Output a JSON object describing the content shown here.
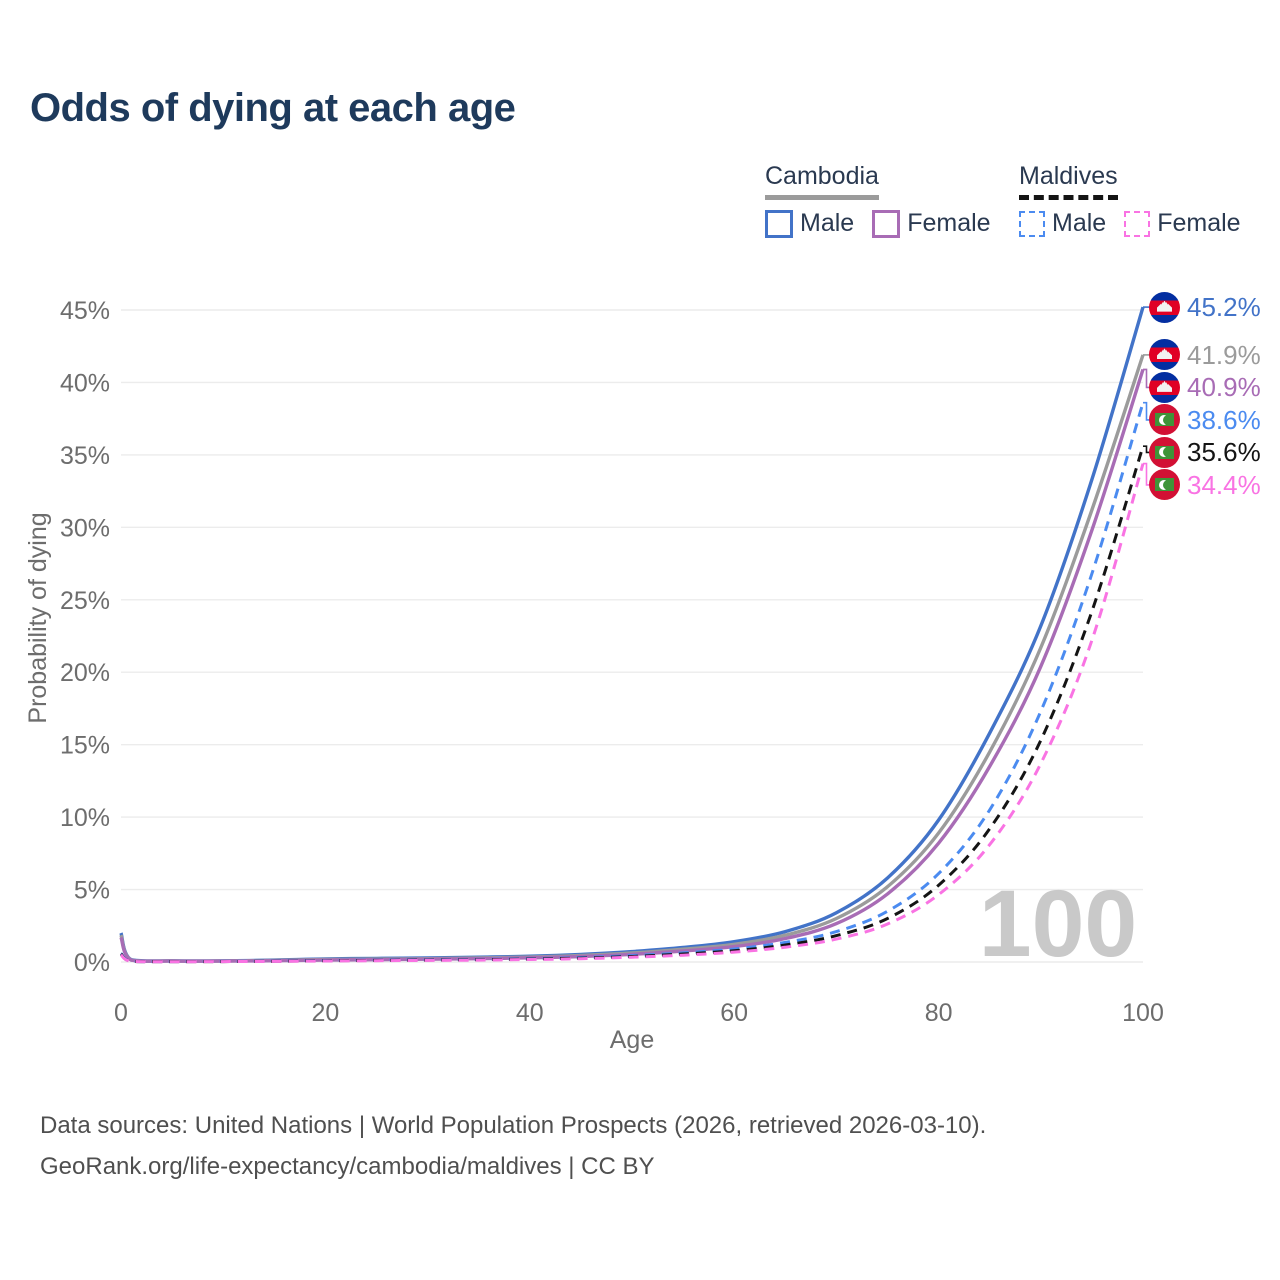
{
  "title": "Odds of dying at each age",
  "legend": {
    "groups": [
      {
        "title": "Cambodia",
        "line_style": "solid",
        "line_color": "#9b9b9b",
        "items": [
          {
            "label": "Male",
            "color": "#4273c8",
            "dashed": false
          },
          {
            "label": "Female",
            "color": "#a86cb5",
            "dashed": false
          }
        ]
      },
      {
        "title": "Maldives",
        "line_style": "dashed",
        "line_color": "#141414",
        "items": [
          {
            "label": "Male",
            "color": "#4b8bf0",
            "dashed": true
          },
          {
            "label": "Female",
            "color": "#f973e3",
            "dashed": true
          }
        ]
      }
    ]
  },
  "chart_data": {
    "type": "line",
    "title": "Odds of dying at each age",
    "xlabel": "Age",
    "ylabel": "Probability of dying",
    "xlim": [
      0,
      100
    ],
    "ylim": [
      0,
      45
    ],
    "grid": "horizontal",
    "legend_position": "top-right",
    "watermark": "100",
    "xtick_labels": [
      "0",
      "20",
      "40",
      "60",
      "80",
      "100"
    ],
    "xtick_values": [
      0,
      20,
      40,
      60,
      80,
      100
    ],
    "ytick_labels": [
      "0%",
      "5%",
      "10%",
      "15%",
      "20%",
      "25%",
      "30%",
      "35%",
      "40%",
      "45%"
    ],
    "ytick_values": [
      0,
      5,
      10,
      15,
      20,
      25,
      30,
      35,
      40,
      45
    ],
    "x": [
      0,
      1,
      5,
      10,
      15,
      20,
      25,
      30,
      35,
      40,
      45,
      50,
      55,
      60,
      65,
      70,
      75,
      80,
      85,
      90,
      95,
      100
    ],
    "series": [
      {
        "name": "Cambodia Male",
        "country": "Cambodia",
        "sex": "Male",
        "flag": "kh",
        "color": "#4273c8",
        "dashed": false,
        "end_label": "45.2%",
        "end_value": 45.2,
        "values": [
          2.0,
          0.16,
          0.08,
          0.08,
          0.13,
          0.21,
          0.25,
          0.28,
          0.33,
          0.4,
          0.52,
          0.72,
          1.0,
          1.4,
          2.1,
          3.4,
          5.8,
          9.8,
          15.8,
          23.2,
          33.3,
          45.2
        ]
      },
      {
        "name": "Cambodia Both sexes",
        "country": "Cambodia",
        "sex": "Both sexes",
        "flag": "kh",
        "color": "#9b9b9b",
        "dashed": false,
        "end_label": "41.9%",
        "end_value": 41.9,
        "values": [
          1.85,
          0.14,
          0.07,
          0.07,
          0.11,
          0.17,
          0.2,
          0.23,
          0.28,
          0.34,
          0.45,
          0.62,
          0.88,
          1.22,
          1.85,
          3.0,
          5.2,
          8.9,
          14.5,
          21.7,
          31.2,
          41.9
        ]
      },
      {
        "name": "Cambodia Female",
        "country": "Cambodia",
        "sex": "Female",
        "flag": "kh",
        "color": "#a86cb5",
        "dashed": false,
        "end_label": "40.9%",
        "end_value": 40.9,
        "values": [
          1.7,
          0.13,
          0.06,
          0.06,
          0.09,
          0.13,
          0.16,
          0.19,
          0.23,
          0.29,
          0.38,
          0.53,
          0.76,
          1.06,
          1.62,
          2.65,
          4.7,
          8.2,
          13.5,
          20.4,
          29.8,
          40.9
        ]
      },
      {
        "name": "Maldives Male",
        "country": "Maldives",
        "sex": "Male",
        "flag": "mv",
        "color": "#4b8bf0",
        "dashed": true,
        "end_label": "38.6%",
        "end_value": 38.6,
        "values": [
          0.6,
          0.06,
          0.03,
          0.04,
          0.07,
          0.11,
          0.13,
          0.15,
          0.18,
          0.23,
          0.31,
          0.44,
          0.63,
          0.9,
          1.35,
          2.1,
          3.5,
          6.1,
          10.5,
          17.3,
          26.8,
          38.6
        ]
      },
      {
        "name": "Maldives Both sexes",
        "country": "Maldives",
        "sex": "Both sexes",
        "flag": "mv",
        "color": "#141414",
        "dashed": true,
        "end_label": "35.6%",
        "end_value": 35.6,
        "values": [
          0.55,
          0.05,
          0.03,
          0.03,
          0.05,
          0.09,
          0.11,
          0.13,
          0.16,
          0.2,
          0.27,
          0.38,
          0.55,
          0.78,
          1.17,
          1.82,
          3.0,
          5.3,
          9.2,
          15.3,
          24.2,
          35.6
        ]
      },
      {
        "name": "Maldives Female",
        "country": "Maldives",
        "sex": "Female",
        "flag": "mv",
        "color": "#f973e3",
        "dashed": true,
        "end_label": "34.4%",
        "end_value": 34.4,
        "values": [
          0.5,
          0.05,
          0.02,
          0.03,
          0.04,
          0.07,
          0.09,
          0.11,
          0.13,
          0.17,
          0.23,
          0.33,
          0.47,
          0.68,
          1.02,
          1.58,
          2.62,
          4.65,
          8.1,
          13.7,
          22.2,
          34.4
        ]
      }
    ]
  },
  "footer": {
    "line1": "Data sources: United Nations | World Population Prospects (2026, retrieved 2026-03-10).",
    "line2": "GeoRank.org/life-expectancy/cambodia/maldives | CC BY"
  }
}
